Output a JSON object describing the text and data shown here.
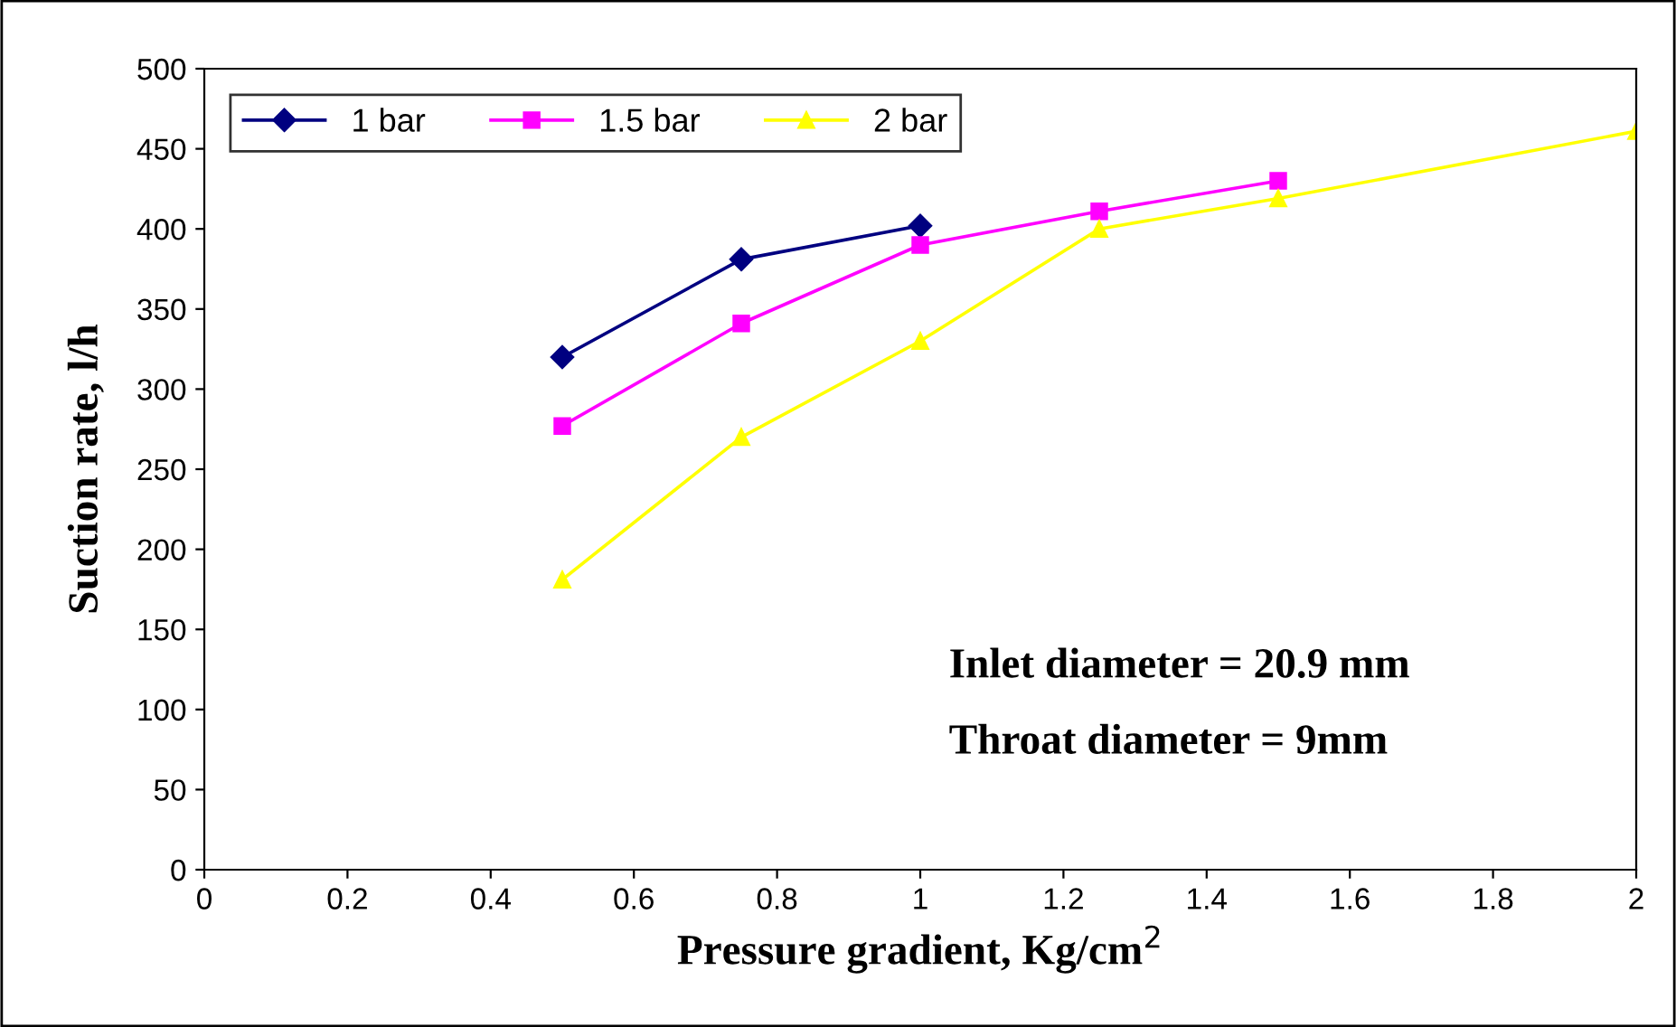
{
  "chart_data": {
    "type": "line",
    "xlabel": "Pressure gradient, Kg/cm$^{2}$",
    "ylabel": "Suction rate, l/h",
    "xlim": [
      0,
      2
    ],
    "xticks": [
      0,
      0.2,
      0.4,
      0.6,
      0.8,
      1,
      1.2,
      1.4,
      1.6,
      1.8,
      2
    ],
    "ylim": [
      0,
      500
    ],
    "yticks": [
      0,
      50,
      100,
      150,
      200,
      250,
      300,
      350,
      400,
      450,
      500
    ],
    "grid": false,
    "legend": "top left",
    "line_style": "solid",
    "series": [
      {
        "name": "1 bar",
        "color": "#000080",
        "marker": "diamond",
        "x": [
          0.5,
          0.75,
          1
        ],
        "values": [
          320,
          381,
          402
        ]
      },
      {
        "name": "1.5 bar",
        "color": "#ff00ff",
        "marker": "square",
        "x": [
          0.5,
          0.75,
          1,
          1.25,
          1.5
        ],
        "values": [
          277,
          341,
          390,
          411,
          430
        ]
      },
      {
        "name": "2 bar",
        "color": "#ffff00",
        "marker": "triangle",
        "x": [
          0.5,
          0.75,
          1,
          1.25,
          1.5,
          2
        ],
        "values": [
          181,
          270,
          330,
          400,
          419,
          461
        ]
      }
    ],
    "annotations": [
      "Inlet diameter = 20.9 mm",
      "Throat diameter = 9mm"
    ]
  }
}
